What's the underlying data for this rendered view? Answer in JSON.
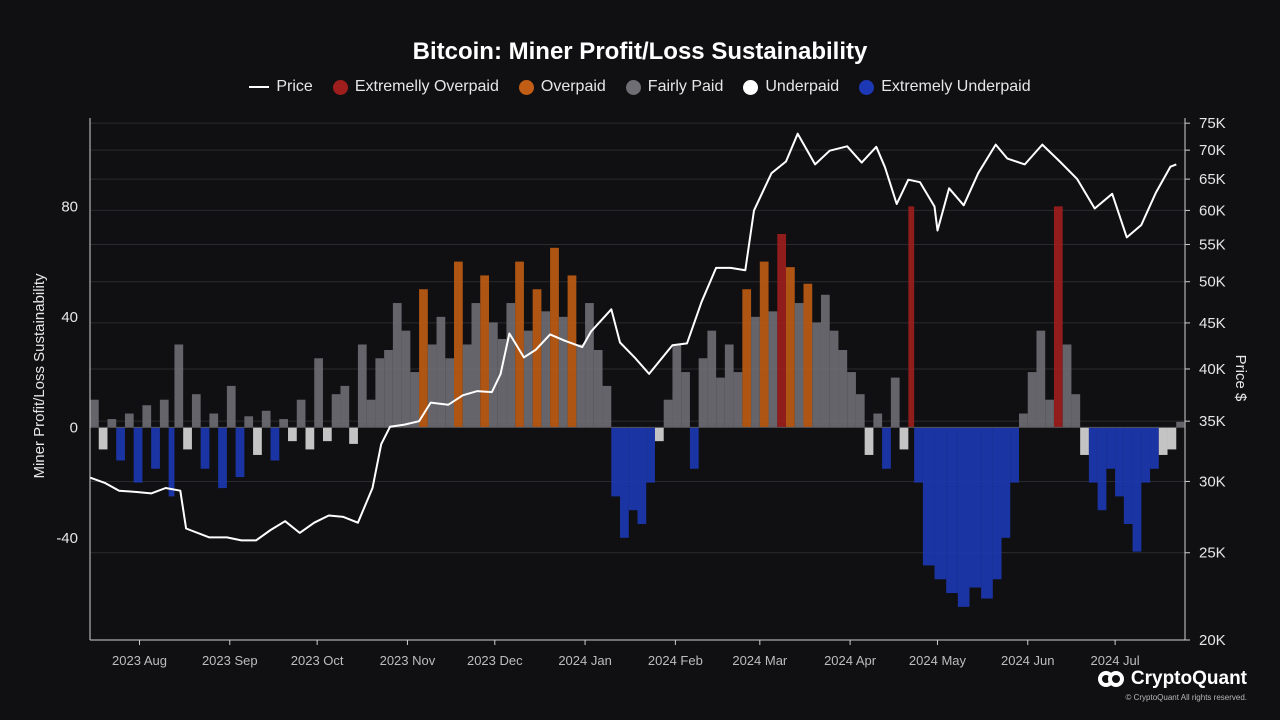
{
  "chart_data": {
    "type": "area",
    "title": "Bitcoin: Miner Profit/Loss Sustainability",
    "ylabel": "Miner Profit/Loss Sustainability",
    "y2label": "Price $",
    "ylim": [
      -77,
      112
    ],
    "y_ticks": [
      "80",
      "40",
      "0",
      "-40"
    ],
    "y_tick_values": [
      80,
      40,
      0,
      -40
    ],
    "y2_log_scale": true,
    "y2lim": [
      20000,
      76000
    ],
    "y2_ticks": [
      "75K",
      "70K",
      "65K",
      "60K",
      "55K",
      "50K",
      "45K",
      "40K",
      "35K",
      "30K",
      "25K",
      "20K"
    ],
    "y2_tick_values": [
      75000,
      70000,
      65000,
      60000,
      55000,
      50000,
      45000,
      40000,
      35000,
      30000,
      25000,
      20000
    ],
    "x_start": "2023-07-15",
    "x_end": "2024-07-25",
    "x_ticks": [
      "2023 Aug",
      "2023 Sep",
      "2023 Oct",
      "2023 Nov",
      "2023 Dec",
      "2024 Jan",
      "2024 Feb",
      "2024 Mar",
      "2024 Apr",
      "2024 May",
      "2024 Jun",
      "2024 Jul"
    ],
    "x_tick_dates": [
      "2023-08-01",
      "2023-09-01",
      "2023-10-01",
      "2023-11-01",
      "2023-12-01",
      "2024-01-01",
      "2024-02-01",
      "2024-03-01",
      "2024-04-01",
      "2024-05-01",
      "2024-06-01",
      "2024-07-01"
    ],
    "grid": true,
    "legend_position": "top-center",
    "series": [
      {
        "name": "Price",
        "kind": "line",
        "color": "#ffffff",
        "points": [
          [
            "2023-07-15",
            30300
          ],
          [
            "2023-07-20",
            29900
          ],
          [
            "2023-07-25",
            29300
          ],
          [
            "2023-07-31",
            29200
          ],
          [
            "2023-08-05",
            29100
          ],
          [
            "2023-08-10",
            29500
          ],
          [
            "2023-08-15",
            29300
          ],
          [
            "2023-08-17",
            26600
          ],
          [
            "2023-08-25",
            26000
          ],
          [
            "2023-08-31",
            26000
          ],
          [
            "2023-09-05",
            25800
          ],
          [
            "2023-09-10",
            25800
          ],
          [
            "2023-09-15",
            26500
          ],
          [
            "2023-09-20",
            27100
          ],
          [
            "2023-09-25",
            26300
          ],
          [
            "2023-09-30",
            27000
          ],
          [
            "2023-10-05",
            27500
          ],
          [
            "2023-10-10",
            27400
          ],
          [
            "2023-10-15",
            27000
          ],
          [
            "2023-10-20",
            29500
          ],
          [
            "2023-10-23",
            33000
          ],
          [
            "2023-10-26",
            34500
          ],
          [
            "2023-10-31",
            34700
          ],
          [
            "2023-11-05",
            35000
          ],
          [
            "2023-11-09",
            36700
          ],
          [
            "2023-11-15",
            36500
          ],
          [
            "2023-11-20",
            37400
          ],
          [
            "2023-11-25",
            37800
          ],
          [
            "2023-11-30",
            37700
          ],
          [
            "2023-12-03",
            39500
          ],
          [
            "2023-12-06",
            43800
          ],
          [
            "2023-12-11",
            41200
          ],
          [
            "2023-12-15",
            42000
          ],
          [
            "2023-12-20",
            43700
          ],
          [
            "2023-12-25",
            43000
          ],
          [
            "2023-12-31",
            42300
          ],
          [
            "2024-01-03",
            44000
          ],
          [
            "2024-01-10",
            46600
          ],
          [
            "2024-01-13",
            42800
          ],
          [
            "2024-01-18",
            41200
          ],
          [
            "2024-01-23",
            39500
          ],
          [
            "2024-01-31",
            42500
          ],
          [
            "2024-02-05",
            42700
          ],
          [
            "2024-02-10",
            47500
          ],
          [
            "2024-02-15",
            51800
          ],
          [
            "2024-02-20",
            51800
          ],
          [
            "2024-02-25",
            51500
          ],
          [
            "2024-02-28",
            60000
          ],
          [
            "2024-03-05",
            66000
          ],
          [
            "2024-03-10",
            68000
          ],
          [
            "2024-03-14",
            73000
          ],
          [
            "2024-03-20",
            67500
          ],
          [
            "2024-03-25",
            69900
          ],
          [
            "2024-03-31",
            70700
          ],
          [
            "2024-04-05",
            67800
          ],
          [
            "2024-04-10",
            70600
          ],
          [
            "2024-04-13",
            67000
          ],
          [
            "2024-04-17",
            61000
          ],
          [
            "2024-04-21",
            64900
          ],
          [
            "2024-04-25",
            64500
          ],
          [
            "2024-04-30",
            60600
          ],
          [
            "2024-05-01",
            57000
          ],
          [
            "2024-05-05",
            63500
          ],
          [
            "2024-05-10",
            60800
          ],
          [
            "2024-05-15",
            66000
          ],
          [
            "2024-05-21",
            71000
          ],
          [
            "2024-05-25",
            68500
          ],
          [
            "2024-05-31",
            67500
          ],
          [
            "2024-06-06",
            71000
          ],
          [
            "2024-06-12",
            68000
          ],
          [
            "2024-06-18",
            65000
          ],
          [
            "2024-06-24",
            60300
          ],
          [
            "2024-06-30",
            62600
          ],
          [
            "2024-07-05",
            56000
          ],
          [
            "2024-07-10",
            57800
          ],
          [
            "2024-07-15",
            62800
          ],
          [
            "2024-07-20",
            67100
          ],
          [
            "2024-07-22",
            67500
          ]
        ]
      },
      {
        "name": "Extremelly Overpaid",
        "kind": "band",
        "color": "#9e1e1e"
      },
      {
        "name": "Overpaid",
        "kind": "band",
        "color": "#c15d14"
      },
      {
        "name": "Fairly Paid",
        "kind": "band",
        "color": "#6e6e74"
      },
      {
        "name": "Underpaid",
        "kind": "band",
        "color": "#ffffff"
      },
      {
        "name": "Extremely Underpaid",
        "kind": "band",
        "color": "#1d38b5"
      }
    ],
    "sustainability": [
      [
        "2023-07-15",
        10
      ],
      [
        "2023-07-18",
        -8
      ],
      [
        "2023-07-21",
        3
      ],
      [
        "2023-07-24",
        -12
      ],
      [
        "2023-07-27",
        5
      ],
      [
        "2023-07-30",
        -20
      ],
      [
        "2023-08-02",
        8
      ],
      [
        "2023-08-05",
        -15
      ],
      [
        "2023-08-08",
        10
      ],
      [
        "2023-08-11",
        -25
      ],
      [
        "2023-08-13",
        30
      ],
      [
        "2023-08-16",
        -8
      ],
      [
        "2023-08-19",
        12
      ],
      [
        "2023-08-22",
        -15
      ],
      [
        "2023-08-25",
        5
      ],
      [
        "2023-08-28",
        -22
      ],
      [
        "2023-08-31",
        15
      ],
      [
        "2023-09-03",
        -18
      ],
      [
        "2023-09-06",
        4
      ],
      [
        "2023-09-09",
        -10
      ],
      [
        "2023-09-12",
        6
      ],
      [
        "2023-09-15",
        -12
      ],
      [
        "2023-09-18",
        3
      ],
      [
        "2023-09-21",
        -5
      ],
      [
        "2023-09-24",
        10
      ],
      [
        "2023-09-27",
        -8
      ],
      [
        "2023-09-30",
        25
      ],
      [
        "2023-10-03",
        -5
      ],
      [
        "2023-10-06",
        12
      ],
      [
        "2023-10-09",
        15
      ],
      [
        "2023-10-12",
        -6
      ],
      [
        "2023-10-15",
        30
      ],
      [
        "2023-10-18",
        10
      ],
      [
        "2023-10-21",
        25
      ],
      [
        "2023-10-24",
        28
      ],
      [
        "2023-10-27",
        45
      ],
      [
        "2023-10-30",
        35
      ],
      [
        "2023-11-02",
        20
      ],
      [
        "2023-11-05",
        50
      ],
      [
        "2023-11-08",
        30
      ],
      [
        "2023-11-11",
        40
      ],
      [
        "2023-11-14",
        25
      ],
      [
        "2023-11-17",
        60
      ],
      [
        "2023-11-20",
        30
      ],
      [
        "2023-11-23",
        45
      ],
      [
        "2023-11-26",
        55
      ],
      [
        "2023-11-29",
        38
      ],
      [
        "2023-12-02",
        32
      ],
      [
        "2023-12-05",
        45
      ],
      [
        "2023-12-08",
        60
      ],
      [
        "2023-12-11",
        35
      ],
      [
        "2023-12-14",
        50
      ],
      [
        "2023-12-17",
        42
      ],
      [
        "2023-12-20",
        65
      ],
      [
        "2023-12-23",
        40
      ],
      [
        "2023-12-26",
        55
      ],
      [
        "2023-12-29",
        30
      ],
      [
        "2024-01-01",
        45
      ],
      [
        "2024-01-04",
        28
      ],
      [
        "2024-01-07",
        15
      ],
      [
        "2024-01-10",
        -25
      ],
      [
        "2024-01-13",
        -40
      ],
      [
        "2024-01-16",
        -30
      ],
      [
        "2024-01-19",
        -35
      ],
      [
        "2024-01-22",
        -20
      ],
      [
        "2024-01-25",
        -5
      ],
      [
        "2024-01-28",
        10
      ],
      [
        "2024-01-31",
        30
      ],
      [
        "2024-02-03",
        20
      ],
      [
        "2024-02-06",
        -15
      ],
      [
        "2024-02-09",
        25
      ],
      [
        "2024-02-12",
        35
      ],
      [
        "2024-02-15",
        18
      ],
      [
        "2024-02-18",
        30
      ],
      [
        "2024-02-21",
        20
      ],
      [
        "2024-02-24",
        50
      ],
      [
        "2024-02-27",
        40
      ],
      [
        "2024-03-01",
        60
      ],
      [
        "2024-03-04",
        42
      ],
      [
        "2024-03-07",
        70
      ],
      [
        "2024-03-10",
        58
      ],
      [
        "2024-03-13",
        45
      ],
      [
        "2024-03-16",
        52
      ],
      [
        "2024-03-19",
        38
      ],
      [
        "2024-03-22",
        48
      ],
      [
        "2024-03-25",
        35
      ],
      [
        "2024-03-28",
        28
      ],
      [
        "2024-03-31",
        20
      ],
      [
        "2024-04-03",
        12
      ],
      [
        "2024-04-06",
        -10
      ],
      [
        "2024-04-09",
        5
      ],
      [
        "2024-04-12",
        -15
      ],
      [
        "2024-04-15",
        18
      ],
      [
        "2024-04-18",
        -8
      ],
      [
        "2024-04-21",
        80
      ],
      [
        "2024-04-23",
        -20
      ],
      [
        "2024-04-26",
        -50
      ],
      [
        "2024-04-30",
        -55
      ],
      [
        "2024-05-04",
        -60
      ],
      [
        "2024-05-08",
        -65
      ],
      [
        "2024-05-12",
        -58
      ],
      [
        "2024-05-16",
        -62
      ],
      [
        "2024-05-20",
        -55
      ],
      [
        "2024-05-23",
        -40
      ],
      [
        "2024-05-26",
        -20
      ],
      [
        "2024-05-29",
        5
      ],
      [
        "2024-06-01",
        20
      ],
      [
        "2024-06-04",
        35
      ],
      [
        "2024-06-07",
        10
      ],
      [
        "2024-06-10",
        80
      ],
      [
        "2024-06-13",
        30
      ],
      [
        "2024-06-16",
        12
      ],
      [
        "2024-06-19",
        -10
      ],
      [
        "2024-06-22",
        -20
      ],
      [
        "2024-06-25",
        -30
      ],
      [
        "2024-06-28",
        -15
      ],
      [
        "2024-07-01",
        -25
      ],
      [
        "2024-07-04",
        -35
      ],
      [
        "2024-07-07",
        -45
      ],
      [
        "2024-07-10",
        -20
      ],
      [
        "2024-07-13",
        -15
      ],
      [
        "2024-07-16",
        -10
      ],
      [
        "2024-07-19",
        -8
      ],
      [
        "2024-07-22",
        2
      ]
    ]
  },
  "brand": {
    "name": "CryptoQuant",
    "rights": "© CryptoQuant All rights reserved."
  },
  "colors": {
    "background": "#101012",
    "grid": "#2a2a2e",
    "axis": "#cfcfcf"
  }
}
